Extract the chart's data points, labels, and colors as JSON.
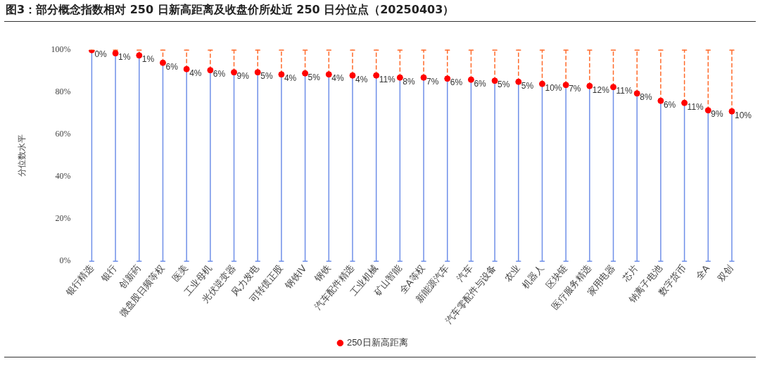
{
  "chart_data": {
    "type": "lollipop",
    "title": "图3：部分概念指数相对 250 日新高距离及收盘价所处近 250 日分位点（20250403）",
    "ylabel": "分位数水平",
    "categories": [
      "银行精选",
      "银行",
      "创新药",
      "微盘股日频等权",
      "医美",
      "工业母机",
      "光伏逆变器",
      "风力发电",
      "可转债正股",
      "钢铁IV",
      "钢铁",
      "汽车配件精选",
      "工业机械",
      "矿山智能",
      "全A等权",
      "新能源汽车",
      "汽车",
      "汽车零配件与设备",
      "农业",
      "机器人",
      "区块链",
      "医疗服务精选",
      "家用电器",
      "芯片",
      "钠离子电池",
      "数字货币",
      "全A",
      "双创"
    ],
    "series": [
      {
        "name": "250日新高距离",
        "color": "#ff0000",
        "values": [
          100,
          98.5,
          97.5,
          94,
          91,
          90.5,
          89.5,
          89.5,
          88.5,
          89,
          88.5,
          88,
          88,
          87,
          87,
          86.5,
          86,
          85.5,
          85,
          84,
          83.5,
          83,
          82.5,
          79.5,
          76,
          75,
          71.5,
          71
        ]
      }
    ],
    "annotations": [
      {
        "text": "0%",
        "x": "银行精选",
        "y": 100
      },
      {
        "text": "1%",
        "x": "银行",
        "y": 98.5
      },
      {
        "text": "1%",
        "x": "创新药",
        "y": 97.5
      },
      {
        "text": "6%",
        "x": "微盘股日频等权",
        "y": 94
      },
      {
        "text": "4%",
        "x": "医美",
        "y": 91
      },
      {
        "text": "6%",
        "x": "工业母机",
        "y": 90.5
      },
      {
        "text": "9%",
        "x": "光伏逆变器",
        "y": 89.5
      },
      {
        "text": "5%",
        "x": "风力发电",
        "y": 89.5
      },
      {
        "text": "4%",
        "x": "可转债正股",
        "y": 88.5
      },
      {
        "text": "5%",
        "x": "钢铁IV",
        "y": 89
      },
      {
        "text": "4%",
        "x": "钢铁",
        "y": 88.5
      },
      {
        "text": "4%",
        "x": "汽车配件精选",
        "y": 88
      },
      {
        "text": "11%",
        "x": "工业机械",
        "y": 88
      },
      {
        "text": "8%",
        "x": "矿山智能",
        "y": 87
      },
      {
        "text": "7%",
        "x": "全A等权",
        "y": 87
      },
      {
        "text": "6%",
        "x": "新能源汽车",
        "y": 86.5
      },
      {
        "text": "6%",
        "x": "汽车",
        "y": 86
      },
      {
        "text": "5%",
        "x": "汽车零配件与设备",
        "y": 85.5
      },
      {
        "text": "5%",
        "x": "农业",
        "y": 85
      },
      {
        "text": "10%",
        "x": "机器人",
        "y": 84
      },
      {
        "text": "7%",
        "x": "区块链",
        "y": 83.5
      },
      {
        "text": "12%",
        "x": "医疗服务精选",
        "y": 83
      },
      {
        "text": "11%",
        "x": "家用电器",
        "y": 82.5
      },
      {
        "text": "8%",
        "x": "芯片",
        "y": 79.5
      },
      {
        "text": "6%",
        "x": "钠离子电池",
        "y": 76
      },
      {
        "text": "11%",
        "x": "数字货币",
        "y": 75
      },
      {
        "text": "9%",
        "x": "全A",
        "y": 71.5
      },
      {
        "text": "10%",
        "x": "双创",
        "y": 71
      }
    ],
    "ylim": [
      0,
      100
    ],
    "yticks": [
      {
        "value": 0,
        "label": "0%"
      },
      {
        "value": 20,
        "label": "20%"
      },
      {
        "value": 40,
        "label": "40%"
      },
      {
        "value": 60,
        "label": "60%"
      },
      {
        "value": 80,
        "label": "80%"
      },
      {
        "value": 100,
        "label": "100%"
      }
    ],
    "grid": "x",
    "legend": "bottom",
    "marker": "circle"
  }
}
